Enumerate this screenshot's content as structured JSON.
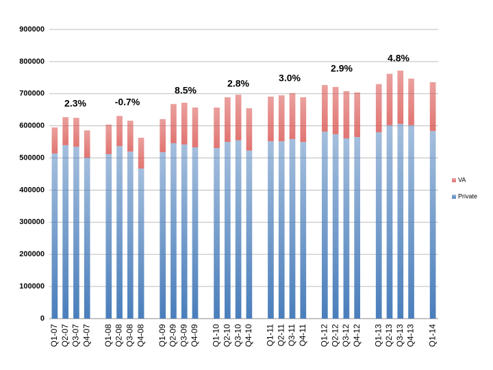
{
  "chart_data": {
    "type": "bar",
    "stacked": true,
    "categories": [
      "Q1-07",
      "Q2-07",
      "Q3-07",
      "Q4-07",
      null,
      "Q1-08",
      "Q2-08",
      "Q3-08",
      "Q4-08",
      null,
      "Q1-09",
      "Q2-09",
      "Q3-09",
      "Q4-09",
      null,
      "Q1-10",
      "Q2-10",
      "Q3-10",
      "Q4-10",
      null,
      "Q1-11",
      "Q2-11",
      "Q3-11",
      "Q4-11",
      null,
      "Q1-12",
      "Q2-12",
      "Q3-12",
      "Q4-12",
      null,
      "Q1-13",
      "Q2-13",
      "Q3-13",
      "Q4-13",
      null,
      "Q1-14"
    ],
    "series": [
      {
        "name": "Private",
        "color": "#4a7ebb",
        "values": [
          514000,
          540000,
          535000,
          501000,
          null,
          512000,
          537000,
          520000,
          467000,
          null,
          518000,
          546000,
          542000,
          533000,
          null,
          531000,
          550000,
          555000,
          523000,
          null,
          552000,
          552000,
          559000,
          550000,
          null,
          582000,
          574000,
          561000,
          565000,
          null,
          580000,
          602000,
          606000,
          602000,
          null,
          584000
        ]
      },
      {
        "name": "VA",
        "color": "#d9534f",
        "values": [
          81000,
          87000,
          90000,
          85000,
          null,
          92000,
          94000,
          96000,
          96000,
          null,
          103000,
          122000,
          130000,
          124000,
          null,
          126000,
          139000,
          142000,
          132000,
          null,
          139000,
          143000,
          143000,
          139000,
          null,
          145000,
          147000,
          147000,
          139000,
          null,
          150000,
          160000,
          166000,
          145000,
          null,
          152000
        ]
      }
    ],
    "annotations": [
      "2.3%",
      "-0.7%",
      "8.5%",
      "2.8%",
      "3.0%",
      "2.9%",
      "4.8%"
    ],
    "ylim": [
      0,
      900000
    ],
    "yticks": [
      0,
      100000,
      200000,
      300000,
      400000,
      500000,
      600000,
      700000,
      800000,
      900000
    ],
    "grid": true,
    "legend": "right"
  }
}
